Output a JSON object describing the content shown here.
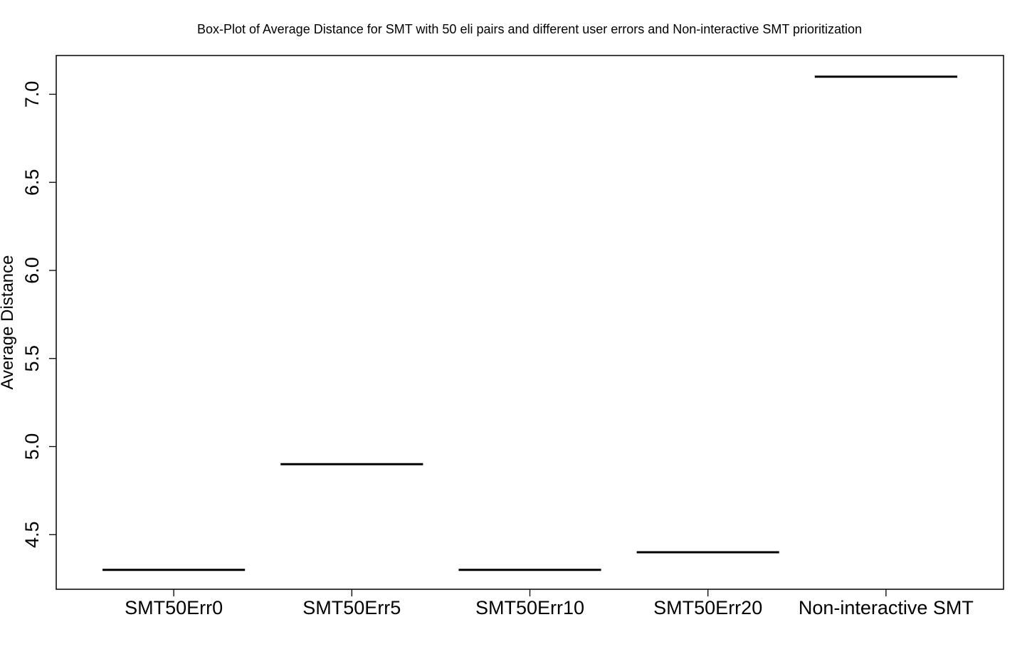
{
  "chart_data": {
    "type": "box",
    "title": "Box-Plot of Average Distance for SMT with 50 eli pairs and different user errors and Non-interactive SMT prioritization",
    "xlabel": "",
    "ylabel": "Average Distance",
    "categories": [
      "SMT50Err0",
      "SMT50Err5",
      "SMT50Err10",
      "SMT50Err20",
      "Non-interactive SMT"
    ],
    "values": [
      4.3,
      4.9,
      4.3,
      4.4,
      7.1
    ],
    "ylim": [
      4.19,
      7.22
    ],
    "yticks": [
      4.5,
      5.0,
      5.5,
      6.0,
      6.5,
      7.0
    ],
    "ytick_labels": [
      "4.5",
      "5.0",
      "5.5",
      "6.0",
      "6.5",
      "7.0"
    ],
    "grid": false,
    "legend": "none"
  },
  "colors": {
    "axis": "#000000",
    "median": "#000000",
    "background": "#ffffff"
  }
}
